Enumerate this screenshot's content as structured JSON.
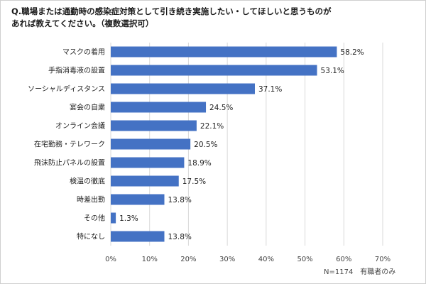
{
  "title": {
    "line1": "Q.職場または通勤時の感染症対策として引き続き実施したい・してほしいと思うものが",
    "line2": "あれば教えてください。（複数選択可）"
  },
  "note": "N=1174　有職者のみ",
  "colors": {
    "bar": "#4472c4",
    "grid": "#d9d9d9"
  },
  "chart_data": {
    "type": "bar",
    "orientation": "horizontal",
    "categories": [
      "マスクの着用",
      "手指消毒液の設置",
      "ソーシャルディスタンス",
      "宴会の自粛",
      "オンライン会議",
      "在宅勤務・テレワーク",
      "飛沫防止パネルの設置",
      "検温の徹底",
      "時差出勤",
      "その他",
      "特になし"
    ],
    "values": [
      58.2,
      53.1,
      37.1,
      24.5,
      22.1,
      20.5,
      18.9,
      17.5,
      13.8,
      1.3,
      13.8
    ],
    "value_labels": [
      "58.2%",
      "53.1%",
      "37.1%",
      "24.5%",
      "22.1%",
      "20.5%",
      "18.9%",
      "17.5%",
      "13.8%",
      "1.3%",
      "13.8%"
    ],
    "xlim": [
      0,
      70
    ],
    "ticks": [
      0,
      10,
      20,
      30,
      40,
      50,
      60,
      70
    ],
    "tick_labels": [
      "0%",
      "10%",
      "20%",
      "30%",
      "40%",
      "50%",
      "60%",
      "70%"
    ],
    "grid": true,
    "legend": "none"
  }
}
